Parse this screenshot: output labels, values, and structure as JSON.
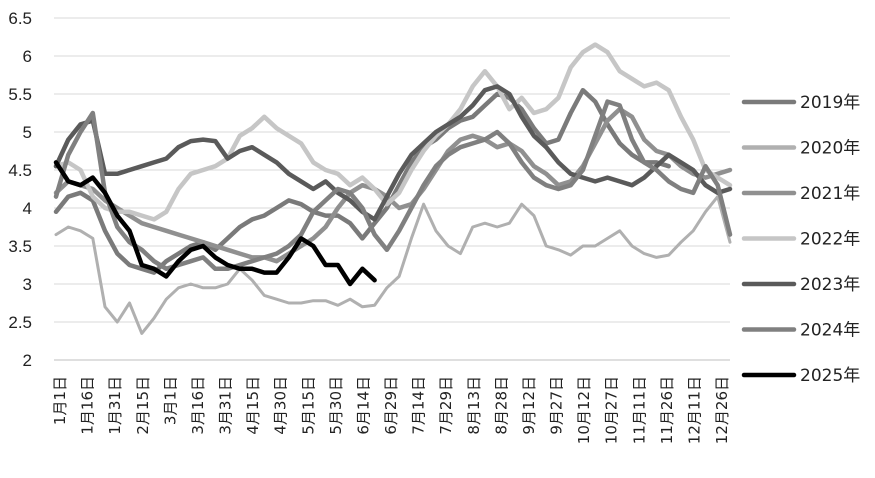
{
  "chart_data": {
    "type": "line",
    "title": "",
    "xlabel": "",
    "ylabel": "",
    "ylim": [
      2,
      6.5
    ],
    "yticks": [
      "2",
      "2.5",
      "3",
      "3.5",
      "4",
      "4.5",
      "5",
      "5.5",
      "6",
      "6.5"
    ],
    "x_ticks": [
      "1月1日",
      "1月16日",
      "1月31日",
      "2月15日",
      "3月1日",
      "3月16日",
      "3月31日",
      "4月15日",
      "4月30日",
      "5月15日",
      "5月30日",
      "6月14日",
      "6月29日",
      "7月14日",
      "7月29日",
      "8月13日",
      "8月28日",
      "9月12日",
      "9月27日",
      "10月12日",
      "10月27日",
      "11月11日",
      "11月26日",
      "12月11日",
      "12月26日"
    ],
    "grid": "horizontal",
    "legend_position": "right",
    "series": [
      {
        "name": "2019年",
        "color": "#7a7a7a",
        "width": 4.5,
        "values": [
          3.95,
          4.15,
          4.2,
          4.1,
          3.7,
          3.4,
          3.25,
          3.2,
          3.15,
          3.3,
          3.4,
          3.5,
          3.55,
          3.45,
          3.6,
          3.75,
          3.85,
          3.9,
          4.0,
          4.1,
          4.05,
          3.95,
          3.9,
          3.9,
          3.8,
          3.6,
          3.8,
          4.0,
          4.3,
          4.6,
          4.8,
          4.9,
          5.05,
          5.15,
          5.2,
          5.35,
          5.5,
          5.45,
          5.3,
          5.05,
          4.85,
          4.9,
          5.25,
          5.55,
          5.4,
          5.1,
          4.85,
          4.7,
          4.6,
          4.6,
          4.55
        ]
      },
      {
        "name": "2020年",
        "color": "#b0b0b0",
        "width": 3,
        "values": [
          3.65,
          3.75,
          3.7,
          3.6,
          2.7,
          2.5,
          2.75,
          2.35,
          2.55,
          2.8,
          2.95,
          3.0,
          2.95,
          2.95,
          3.0,
          3.2,
          3.05,
          2.85,
          2.8,
          2.75,
          2.75,
          2.78,
          2.78,
          2.72,
          2.8,
          2.7,
          2.72,
          2.95,
          3.1,
          3.6,
          4.05,
          3.7,
          3.5,
          3.4,
          3.75,
          3.8,
          3.75,
          3.8,
          4.05,
          3.9,
          3.5,
          3.45,
          3.38,
          3.5,
          3.5,
          3.6,
          3.7,
          3.5,
          3.4,
          3.35,
          3.38,
          3.55,
          3.7,
          3.95,
          4.15,
          3.55
        ]
      },
      {
        "name": "2021年",
        "color": "#909090",
        "width": 4.5,
        "values": [
          4.2,
          4.35,
          4.3,
          4.25,
          4.1,
          4.0,
          3.9,
          3.8,
          3.75,
          3.7,
          3.65,
          3.6,
          3.55,
          3.5,
          3.45,
          3.4,
          3.35,
          3.35,
          3.3,
          3.4,
          3.5,
          3.6,
          3.75,
          4.0,
          4.2,
          4.3,
          4.25,
          4.15,
          4.0,
          4.05,
          4.25,
          4.5,
          4.75,
          4.9,
          4.95,
          4.9,
          4.8,
          4.85,
          4.75,
          4.55,
          4.45,
          4.3,
          4.35,
          4.55,
          4.85,
          5.15,
          5.3,
          5.2,
          4.9,
          4.75,
          4.7,
          4.55,
          4.45,
          4.4,
          4.45,
          4.5
        ]
      },
      {
        "name": "2022年",
        "color": "#c6c6c6",
        "width": 4.5,
        "values": [
          4.55,
          4.6,
          4.5,
          4.15,
          4.0,
          3.95,
          3.95,
          3.9,
          3.85,
          3.95,
          4.25,
          4.45,
          4.5,
          4.55,
          4.65,
          4.95,
          5.05,
          5.2,
          5.05,
          4.95,
          4.85,
          4.6,
          4.5,
          4.45,
          4.3,
          4.4,
          4.25,
          4.05,
          4.2,
          4.5,
          4.75,
          4.95,
          5.1,
          5.3,
          5.6,
          5.8,
          5.6,
          5.3,
          5.45,
          5.25,
          5.3,
          5.45,
          5.85,
          6.05,
          6.15,
          6.05,
          5.8,
          5.7,
          5.6,
          5.65,
          5.55,
          5.2,
          4.9,
          4.5,
          4.4,
          4.3
        ]
      },
      {
        "name": "2023年",
        "color": "#5a5a5a",
        "width": 4.5,
        "values": [
          4.55,
          4.9,
          5.1,
          5.15,
          4.45,
          4.45,
          4.5,
          4.55,
          4.6,
          4.65,
          4.8,
          4.88,
          4.9,
          4.88,
          4.65,
          4.75,
          4.8,
          4.7,
          4.6,
          4.45,
          4.35,
          4.25,
          4.35,
          4.2,
          4.1,
          3.95,
          3.85,
          4.15,
          4.45,
          4.7,
          4.85,
          5.0,
          5.1,
          5.2,
          5.35,
          5.55,
          5.6,
          5.5,
          5.2,
          4.95,
          4.8,
          4.6,
          4.45,
          4.4,
          4.35,
          4.4,
          4.35,
          4.3,
          4.4,
          4.55,
          4.7,
          4.6,
          4.5,
          4.3,
          4.2,
          4.25
        ]
      },
      {
        "name": "2024年",
        "color": "#808080",
        "width": 4.5,
        "values": [
          4.15,
          4.7,
          5.0,
          5.25,
          4.2,
          3.75,
          3.55,
          3.45,
          3.3,
          3.2,
          3.25,
          3.3,
          3.35,
          3.2,
          3.2,
          3.25,
          3.3,
          3.35,
          3.4,
          3.5,
          3.65,
          3.95,
          4.1,
          4.25,
          4.2,
          4.0,
          3.65,
          3.45,
          3.7,
          4.0,
          4.3,
          4.55,
          4.7,
          4.8,
          4.85,
          4.9,
          5.0,
          4.85,
          4.6,
          4.4,
          4.3,
          4.25,
          4.3,
          4.5,
          4.95,
          5.4,
          5.35,
          4.9,
          4.6,
          4.5,
          4.35,
          4.25,
          4.2,
          4.55,
          4.3,
          3.65
        ]
      },
      {
        "name": "2025年",
        "color": "#000000",
        "width": 4.5,
        "values": [
          4.6,
          4.35,
          4.3,
          4.4,
          4.2,
          3.9,
          3.7,
          3.25,
          3.2,
          3.1,
          3.3,
          3.45,
          3.5,
          3.35,
          3.25,
          3.2,
          3.2,
          3.15,
          3.15,
          3.35,
          3.6,
          3.5,
          3.25,
          3.25,
          3.0,
          3.2,
          3.05
        ]
      }
    ]
  }
}
